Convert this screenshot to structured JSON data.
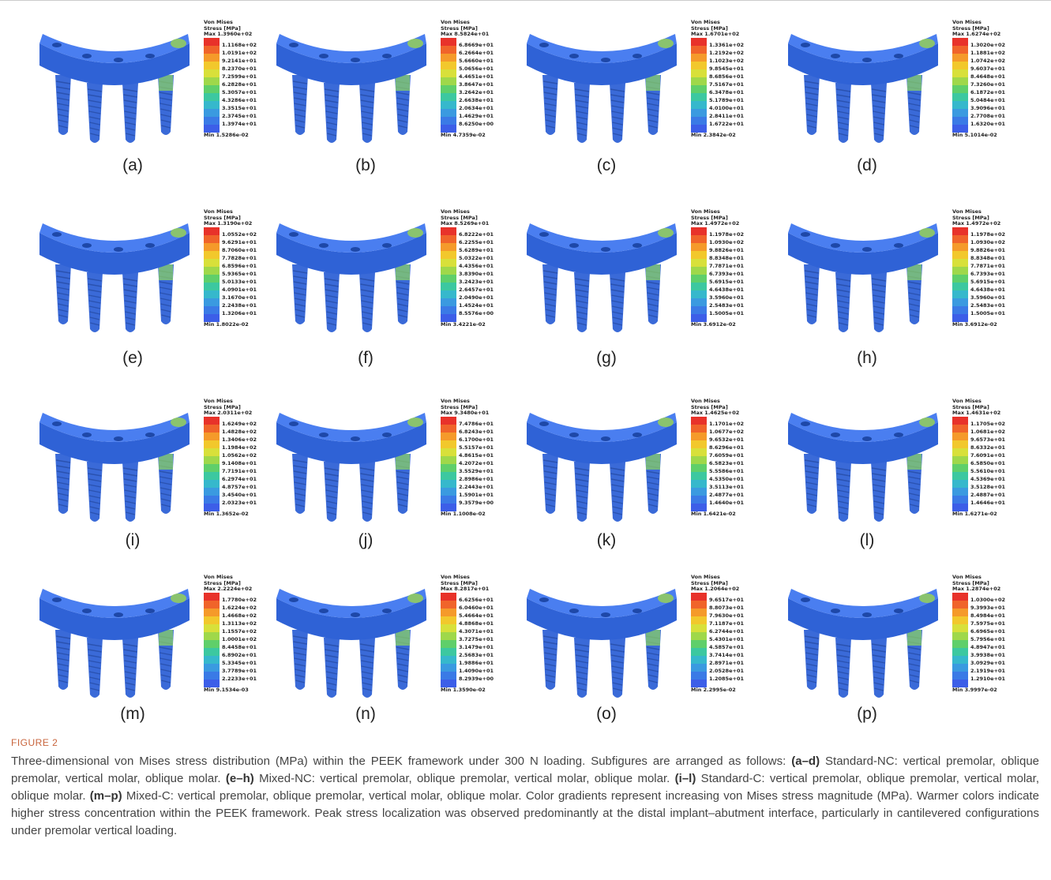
{
  "legend_title": [
    "Von Mises",
    "Stress [MPa]"
  ],
  "panels": [
    {
      "label": "(a)",
      "max": "Max 1.3960e+02",
      "levels": [
        "1.1168e+02",
        "1.0191e+02",
        "9.2141e+01",
        "8.2370e+01",
        "7.2599e+01",
        "6.2828e+01",
        "5.3057e+01",
        "4.3286e+01",
        "3.3515e+01",
        "2.3745e+01",
        "1.3974e+01"
      ],
      "min": "Min 1.5286e-02"
    },
    {
      "label": "(b)",
      "max": "Max 8.5824e+01",
      "levels": [
        "6.8669e+01",
        "6.2664e+01",
        "5.6660e+01",
        "5.0656e+01",
        "4.4651e+01",
        "3.8647e+01",
        "3.2642e+01",
        "2.6638e+01",
        "2.0634e+01",
        "1.4629e+01",
        "8.6250e+00"
      ],
      "min": "Min 4.7359e-02"
    },
    {
      "label": "(c)",
      "max": "Max 1.6701e+02",
      "levels": [
        "1.3361e+02",
        "1.2192e+02",
        "1.1023e+02",
        "9.8545e+01",
        "8.6856e+01",
        "7.5167e+01",
        "6.3478e+01",
        "5.1789e+01",
        "4.0100e+01",
        "2.8411e+01",
        "1.6722e+01"
      ],
      "min": "Min 2.3842e-02"
    },
    {
      "label": "(d)",
      "max": "Max 1.6274e+02",
      "levels": [
        "1.3020e+02",
        "1.1881e+02",
        "1.0742e+02",
        "9.6037e+01",
        "8.4648e+01",
        "7.3260e+01",
        "6.1872e+01",
        "5.0484e+01",
        "3.9096e+01",
        "2.7708e+01",
        "1.6320e+01"
      ],
      "min": "Min 5.1014e-02"
    },
    {
      "label": "(e)",
      "max": "Max 1.3190e+02",
      "levels": [
        "1.0552e+02",
        "9.6291e+01",
        "8.7060e+01",
        "7.7828e+01",
        "6.8596e+01",
        "5.9365e+01",
        "5.0133e+01",
        "4.0901e+01",
        "3.1670e+01",
        "2.2438e+01",
        "1.3206e+01"
      ],
      "min": "Min 1.8022e-02"
    },
    {
      "label": "(f)",
      "max": "Max 8.5269e+01",
      "levels": [
        "6.8222e+01",
        "6.2255e+01",
        "5.6289e+01",
        "5.0322e+01",
        "4.4356e+01",
        "3.8390e+01",
        "3.2423e+01",
        "2.6457e+01",
        "2.0490e+01",
        "1.4524e+01",
        "8.5576e+00"
      ],
      "min": "Min 3.4221e-02"
    },
    {
      "label": "(g)",
      "max": "Max 1.4972e+02",
      "levels": [
        "1.1978e+02",
        "1.0930e+02",
        "9.8826e+01",
        "8.8348e+01",
        "7.7871e+01",
        "6.7393e+01",
        "5.6915e+01",
        "4.6438e+01",
        "3.5960e+01",
        "2.5483e+01",
        "1.5005e+01"
      ],
      "min": "Min 3.6912e-02"
    },
    {
      "label": "(h)",
      "max": "Max 1.4972e+02",
      "levels": [
        "1.1978e+02",
        "1.0930e+02",
        "9.8826e+01",
        "8.8348e+01",
        "7.7871e+01",
        "6.7393e+01",
        "5.6915e+01",
        "4.6438e+01",
        "3.5960e+01",
        "2.5483e+01",
        "1.5005e+01"
      ],
      "min": "Min 3.6912e-02"
    },
    {
      "label": "(i)",
      "max": "Max 2.0311e+02",
      "levels": [
        "1.6249e+02",
        "1.4828e+02",
        "1.3406e+02",
        "1.1984e+02",
        "1.0562e+02",
        "9.1408e+01",
        "7.7191e+01",
        "6.2974e+01",
        "4.8757e+01",
        "3.4540e+01",
        "2.0323e+01"
      ],
      "min": "Min 1.3652e-02"
    },
    {
      "label": "(j)",
      "max": "Max 9.3480e+01",
      "levels": [
        "7.4786e+01",
        "6.8243e+01",
        "6.1700e+01",
        "5.5157e+01",
        "4.8615e+01",
        "4.2072e+01",
        "3.5529e+01",
        "2.8986e+01",
        "2.2443e+01",
        "1.5901e+01",
        "9.3579e+00"
      ],
      "min": "Min 1.1008e-02"
    },
    {
      "label": "(k)",
      "max": "Max 1.4625e+02",
      "levels": [
        "1.1701e+02",
        "1.0677e+02",
        "9.6532e+01",
        "8.6296e+01",
        "7.6059e+01",
        "6.5823e+01",
        "5.5586e+01",
        "4.5350e+01",
        "3.5113e+01",
        "2.4877e+01",
        "1.4640e+01"
      ],
      "min": "Min 1.6421e-02"
    },
    {
      "label": "(l)",
      "max": "Max 1.4631e+02",
      "levels": [
        "1.1705e+02",
        "1.0681e+02",
        "9.6573e+01",
        "8.6332e+01",
        "7.6091e+01",
        "6.5850e+01",
        "5.5610e+01",
        "4.5369e+01",
        "3.5128e+01",
        "2.4887e+01",
        "1.4646e+01"
      ],
      "min": "Min 1.6271e-02"
    },
    {
      "label": "(m)",
      "max": "Max 2.2224e+02",
      "levels": [
        "1.7780e+02",
        "1.6224e+02",
        "1.4668e+02",
        "1.3113e+02",
        "1.1557e+02",
        "1.0001e+02",
        "8.4458e+01",
        "6.8902e+01",
        "5.3345e+01",
        "3.7789e+01",
        "2.2233e+01"
      ],
      "min": "Min 9.1534e-03"
    },
    {
      "label": "(n)",
      "max": "Max 8.2817e+01",
      "levels": [
        "6.6256e+01",
        "6.0460e+01",
        "5.4664e+01",
        "4.8868e+01",
        "4.3071e+01",
        "3.7275e+01",
        "3.1479e+01",
        "2.5683e+01",
        "1.9886e+01",
        "1.4090e+01",
        "8.2939e+00"
      ],
      "min": "Min 1.3590e-02"
    },
    {
      "label": "(o)",
      "max": "Max 1.2064e+02",
      "levels": [
        "9.6517e+01",
        "8.8073e+01",
        "7.9630e+01",
        "7.1187e+01",
        "6.2744e+01",
        "5.4301e+01",
        "4.5857e+01",
        "3.7414e+01",
        "2.8971e+01",
        "2.0528e+01",
        "1.2085e+01"
      ],
      "min": "Min 2.2995e-02"
    },
    {
      "label": "(p)",
      "max": "Max 1.2874e+02",
      "levels": [
        "1.0300e+02",
        "9.3993e+01",
        "8.4984e+01",
        "7.5975e+01",
        "6.6965e+01",
        "5.7956e+01",
        "4.8947e+01",
        "3.9938e+01",
        "3.0929e+01",
        "2.1919e+01",
        "1.2910e+01"
      ],
      "min": "Min 3.9997e-02"
    }
  ],
  "figure_label": "FIGURE 2",
  "caption": [
    "Three-dimensional von Mises stress distribution (MPa) within the PEEK framework under 300 N loading. Subfigures are arranged as follows: ",
    "(a–d)",
    " Standard-NC: vertical premolar, oblique premolar, vertical molar, oblique molar. ",
    "(e–h)",
    " Mixed-NC: vertical premolar, oblique premolar, vertical molar, oblique molar. ",
    "(i–l)",
    " Standard-C: vertical premolar, oblique premolar, vertical molar, oblique molar. ",
    "(m–p)",
    " Mixed-C: vertical premolar, oblique premolar, vertical molar, oblique molar. Color gradients represent increasing von Mises stress magnitude (MPa). Warmer colors indicate higher stress concentration within the PEEK framework. Peak stress localization was observed predominantly at the distal implant–abutment interface, particularly in cantilevered configurations under premolar vertical loading."
  ]
}
